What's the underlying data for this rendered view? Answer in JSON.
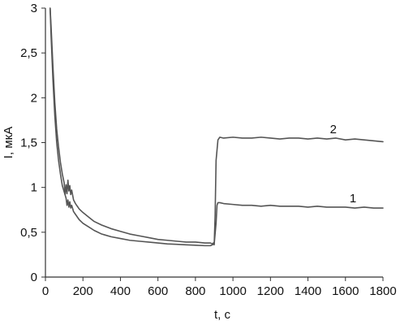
{
  "chart_data": {
    "type": "line",
    "title": "",
    "xlabel": "t, c",
    "ylabel": "I, мкА",
    "xlim": [
      0,
      1800
    ],
    "ylim": [
      0,
      3
    ],
    "grid": false,
    "line_color": "#555555",
    "x_ticks": [
      {
        "value": 0,
        "label": "0"
      },
      {
        "value": 200,
        "label": "200"
      },
      {
        "value": 400,
        "label": "400"
      },
      {
        "value": 600,
        "label": "600"
      },
      {
        "value": 800,
        "label": "800"
      },
      {
        "value": 1000,
        "label": "1000"
      },
      {
        "value": 1200,
        "label": "1200"
      },
      {
        "value": 1400,
        "label": "1400"
      },
      {
        "value": 1600,
        "label": "1600"
      },
      {
        "value": 1800,
        "label": "1800"
      }
    ],
    "y_ticks": [
      {
        "value": 0,
        "label": "0"
      },
      {
        "value": 0.5,
        "label": "0,5"
      },
      {
        "value": 1,
        "label": "1"
      },
      {
        "value": 1.5,
        "label": "1,5"
      },
      {
        "value": 2,
        "label": "2"
      },
      {
        "value": 2.5,
        "label": "2,5"
      },
      {
        "value": 3,
        "label": "3"
      }
    ],
    "series": [
      {
        "name": "1",
        "label_at": [
          1640,
          0.88
        ],
        "x": [
          25,
          30,
          40,
          50,
          60,
          70,
          80,
          90,
          100,
          110,
          115,
          120,
          125,
          130,
          135,
          140,
          150,
          160,
          180,
          200,
          230,
          260,
          300,
          350,
          400,
          450,
          500,
          550,
          600,
          650,
          700,
          750,
          800,
          850,
          880,
          900,
          910,
          915,
          920,
          930,
          950,
          1000,
          1050,
          1100,
          1150,
          1200,
          1250,
          1300,
          1350,
          1400,
          1450,
          1500,
          1550,
          1600,
          1650,
          1700,
          1750,
          1800
        ],
        "y": [
          3.0,
          2.7,
          2.2,
          1.8,
          1.5,
          1.3,
          1.15,
          1.02,
          0.95,
          0.88,
          0.8,
          0.86,
          0.78,
          0.84,
          0.77,
          0.8,
          0.73,
          0.7,
          0.64,
          0.6,
          0.56,
          0.52,
          0.48,
          0.45,
          0.43,
          0.41,
          0.4,
          0.39,
          0.38,
          0.37,
          0.365,
          0.36,
          0.355,
          0.35,
          0.35,
          0.37,
          0.6,
          0.8,
          0.83,
          0.83,
          0.82,
          0.81,
          0.8,
          0.8,
          0.79,
          0.8,
          0.79,
          0.79,
          0.79,
          0.78,
          0.79,
          0.78,
          0.78,
          0.78,
          0.77,
          0.78,
          0.77,
          0.77
        ]
      },
      {
        "name": "2",
        "label_at": [
          1535,
          1.65
        ],
        "x": [
          25,
          30,
          40,
          50,
          60,
          70,
          80,
          90,
          100,
          105,
          110,
          115,
          120,
          125,
          130,
          135,
          140,
          150,
          160,
          180,
          200,
          230,
          260,
          300,
          350,
          400,
          450,
          500,
          550,
          600,
          650,
          700,
          750,
          800,
          850,
          880,
          890,
          895,
          900,
          905,
          910,
          920,
          930,
          950,
          1000,
          1050,
          1100,
          1150,
          1200,
          1250,
          1300,
          1350,
          1400,
          1450,
          1500,
          1550,
          1600,
          1650,
          1700,
          1750,
          1800
        ],
        "y": [
          3.0,
          2.8,
          2.35,
          1.95,
          1.65,
          1.45,
          1.28,
          1.15,
          1.05,
          0.92,
          1.03,
          0.93,
          1.08,
          0.96,
          1.02,
          0.92,
          0.97,
          0.86,
          0.82,
          0.76,
          0.72,
          0.67,
          0.62,
          0.58,
          0.54,
          0.51,
          0.48,
          0.46,
          0.44,
          0.42,
          0.41,
          0.4,
          0.39,
          0.39,
          0.38,
          0.38,
          0.37,
          0.38,
          0.36,
          0.7,
          1.3,
          1.53,
          1.56,
          1.55,
          1.56,
          1.55,
          1.55,
          1.56,
          1.55,
          1.54,
          1.55,
          1.55,
          1.54,
          1.55,
          1.54,
          1.55,
          1.53,
          1.54,
          1.53,
          1.52,
          1.51
        ]
      }
    ]
  }
}
